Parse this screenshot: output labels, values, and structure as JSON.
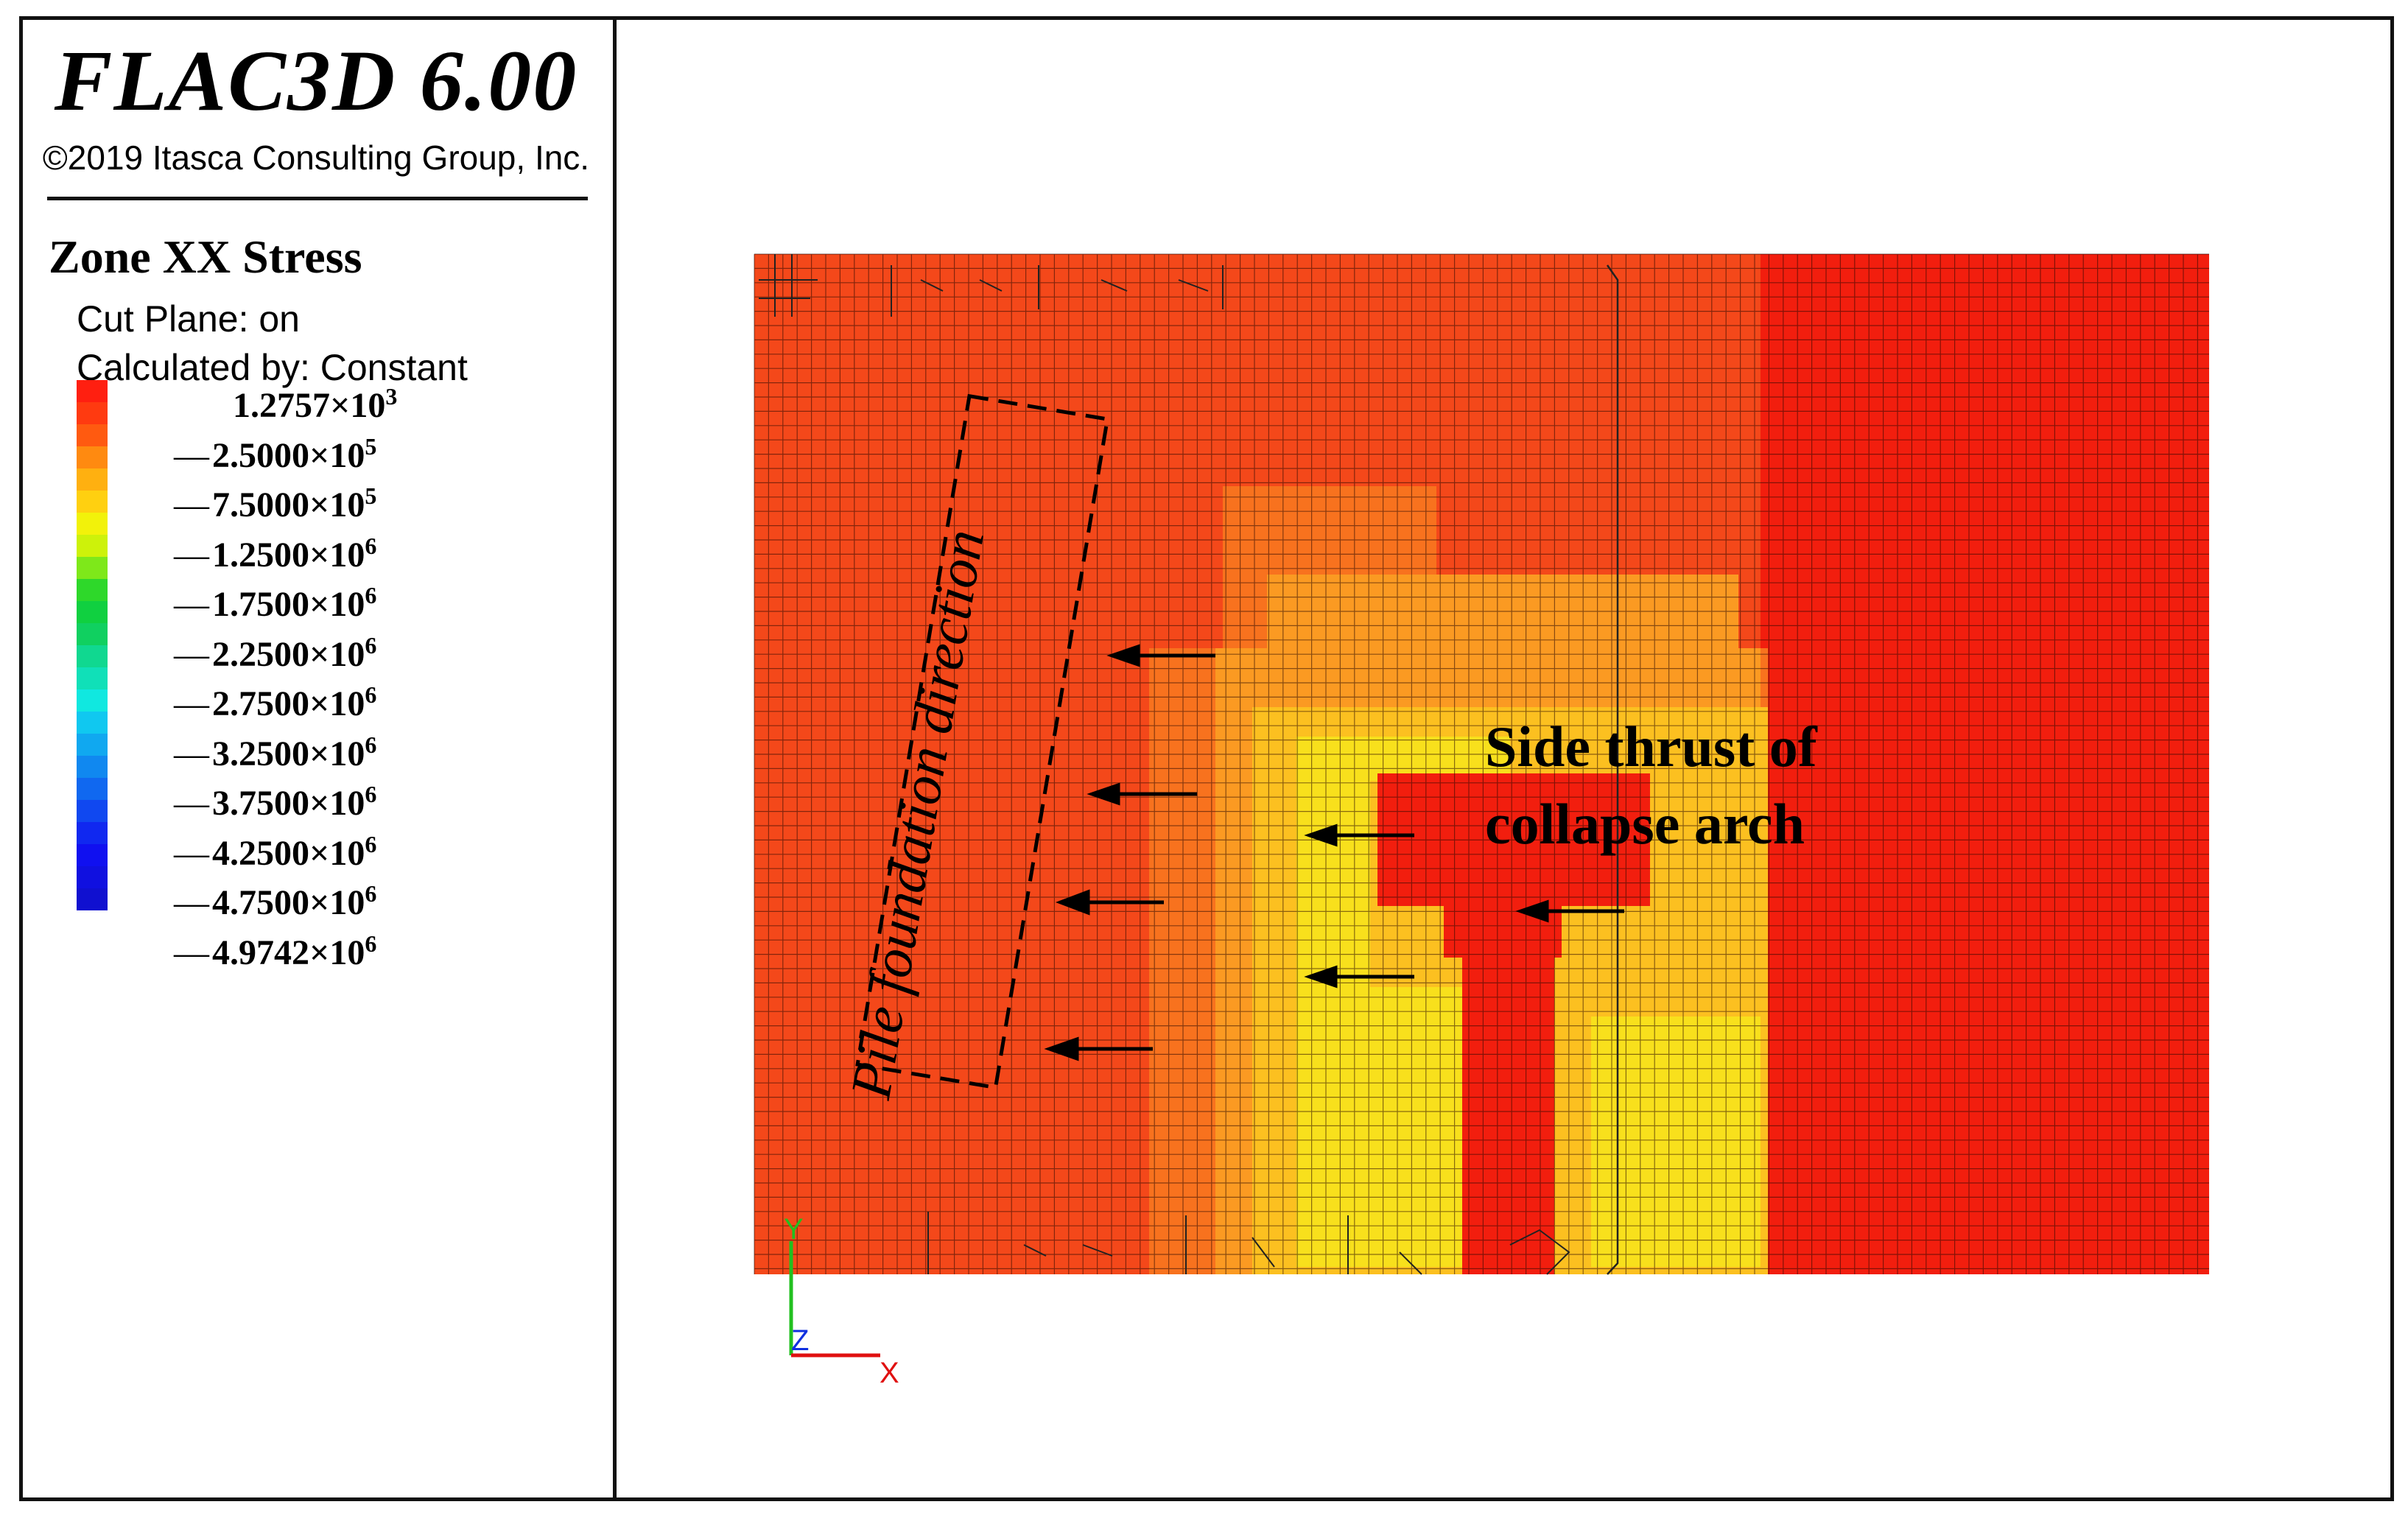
{
  "header": {
    "app_title": "FLAC3D 6.00",
    "copyright": "©2019 Itasca Consulting Group, Inc."
  },
  "legend": {
    "plot_name": "Zone XX Stress",
    "cut_plane": "Cut Plane: on",
    "calculated_by": "Calculated by: Constant",
    "entries": [
      {
        "mantissa": "1.2757",
        "exponent": "3",
        "tick": false
      },
      {
        "mantissa": "2.5000",
        "exponent": "5",
        "tick": true
      },
      {
        "mantissa": "7.5000",
        "exponent": "5",
        "tick": true
      },
      {
        "mantissa": "1.2500",
        "exponent": "6",
        "tick": true
      },
      {
        "mantissa": "1.7500",
        "exponent": "6",
        "tick": true
      },
      {
        "mantissa": "2.2500",
        "exponent": "6",
        "tick": true
      },
      {
        "mantissa": "2.7500",
        "exponent": "6",
        "tick": true
      },
      {
        "mantissa": "3.2500",
        "exponent": "6",
        "tick": true
      },
      {
        "mantissa": "3.7500",
        "exponent": "6",
        "tick": true
      },
      {
        "mantissa": "4.2500",
        "exponent": "6",
        "tick": true
      },
      {
        "mantissa": "4.7500",
        "exponent": "6",
        "tick": true
      },
      {
        "mantissa": "4.9742",
        "exponent": "6",
        "tick": true
      }
    ],
    "swatch_colors": [
      "#ff1f10",
      "#ff3a10",
      "#ff5a10",
      "#ff8a10",
      "#ffb010",
      "#ffd010",
      "#f2f20a",
      "#cdf20a",
      "#7ee81a",
      "#2ed82a",
      "#10d040",
      "#10d060",
      "#10d890",
      "#10e0b8",
      "#10e8e0",
      "#10c8f0",
      "#10a8f0",
      "#1088f0",
      "#1068f0",
      "#1048f0",
      "#1028f0",
      "#1010f0",
      "#1010e0",
      "#1010d0"
    ]
  },
  "annotations": {
    "pile_label": "Pile foundation direction",
    "thrust_line1": "Side thrust of",
    "thrust_line2": "collapse arch"
  },
  "axes": {
    "y": "Y",
    "z": "Z",
    "x": "X"
  },
  "colors": {
    "deep_red": "#f21e0e",
    "red_orange": "#f4481a",
    "orange": "#f8721e",
    "light_orange": "#fb9a22",
    "yellow_orange": "#fcc020",
    "yellow": "#f8e01c",
    "grid_line": "#2a0a02"
  }
}
